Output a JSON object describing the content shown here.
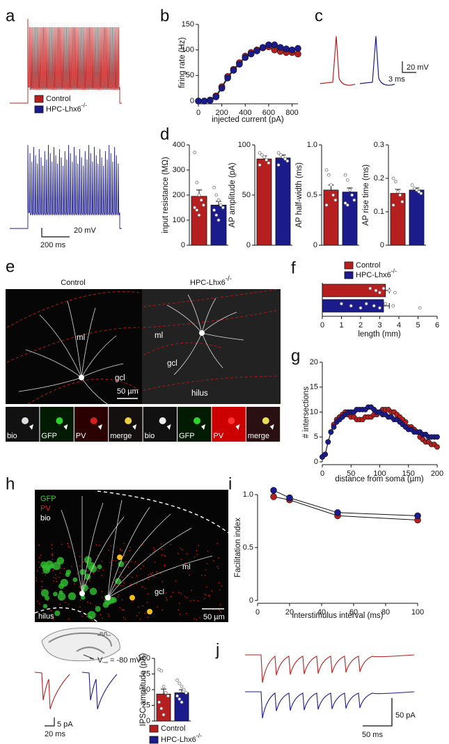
{
  "panels": [
    "a",
    "b",
    "c",
    "d",
    "e",
    "f",
    "g",
    "h",
    "i",
    "j"
  ],
  "groups": [
    {
      "name": "Control",
      "color": "#b51f1f"
    },
    {
      "name": "HPC-Lhx6",
      "sup": "-/-",
      "color": "#1b1b8c"
    }
  ],
  "scale_bars": {
    "a": [
      "20 mV",
      "200 ms"
    ],
    "c": [
      "20 mV",
      "3 ms"
    ],
    "h": [
      "5 pA",
      "20 ms"
    ],
    "j": [
      "50 pA",
      "50 ms"
    ]
  },
  "images": {
    "e": {
      "labels": [
        "ml",
        "gcl",
        "ml",
        "gcl",
        "hilus"
      ],
      "scale": "50 µm",
      "insets": [
        "bio",
        "GFP",
        "PV",
        "merge",
        "bio",
        "GFP",
        "PV",
        "merge"
      ]
    },
    "h": {
      "stains": [
        "GFP",
        "PV",
        "bio"
      ],
      "labels": [
        "ml",
        "gcl",
        "hilus"
      ],
      "scale": "50 µm",
      "vhold": [
        "V",
        "hold",
        " = -80 mV"
      ]
    }
  },
  "chart_data": [
    {
      "type": "line",
      "xlabel": "injected current (pA)",
      "ylabel": "firing rate (Hz)",
      "x": [
        0,
        50,
        100,
        150,
        200,
        250,
        300,
        350,
        400,
        450,
        500,
        550,
        600,
        650,
        700,
        750,
        800,
        850
      ],
      "xlim": [
        0,
        850
      ],
      "xticks": [
        0,
        200,
        400,
        600,
        800
      ],
      "ylim": [
        0,
        150
      ],
      "yticks": [
        0,
        50,
        100,
        150
      ],
      "series": [
        {
          "color": "#b51f1f",
          "values": [
            0,
            0,
            2,
            10,
            28,
            48,
            62,
            75,
            88,
            95,
            100,
            104,
            106,
            100,
            97,
            95,
            95,
            92
          ]
        },
        {
          "color": "#1b1b8c",
          "values": [
            0,
            0,
            1,
            8,
            25,
            45,
            60,
            72,
            85,
            92,
            98,
            105,
            110,
            110,
            105,
            102,
            100,
            103
          ]
        }
      ]
    },
    {
      "type": "bar",
      "ylabel": "input resistance (MΩ)",
      "ylim": [
        0,
        400
      ],
      "yticks": [
        0,
        100,
        200,
        300,
        400
      ],
      "values": [
        195,
        160
      ],
      "errors": [
        25,
        15
      ],
      "points": [
        [
          370,
          250,
          200,
          180,
          160,
          150,
          140,
          120
        ],
        [
          230,
          200,
          180,
          160,
          150,
          140,
          120,
          100
        ]
      ]
    },
    {
      "type": "bar",
      "ylabel": "AP amplitude (pA)",
      "ylim": [
        0,
        100
      ],
      "yticks": [
        0,
        50,
        100
      ],
      "values": [
        86,
        87
      ],
      "errors": [
        3,
        3
      ],
      "points": [
        [
          92,
          90,
          88,
          85,
          82,
          80
        ],
        [
          92,
          90,
          88,
          86,
          84,
          80
        ]
      ]
    },
    {
      "type": "bar",
      "ylabel": "AP half-width (ms)",
      "ylim": [
        0,
        1
      ],
      "yticks": [
        0,
        0.5,
        {
          "value": 1,
          "label": "1.0"
        }
      ],
      "values": [
        0.55,
        0.53
      ],
      "errors": [
        0.05,
        0.04
      ],
      "points": [
        [
          0.75,
          0.7,
          0.6,
          0.5,
          0.45,
          0.4
        ],
        [
          0.7,
          0.65,
          0.55,
          0.5,
          0.45,
          0.42,
          0.4
        ]
      ]
    },
    {
      "type": "bar",
      "ylabel": "AP rise time (ms)",
      "ylim": [
        0,
        0.3
      ],
      "yticks": [
        0,
        0.1,
        0.2,
        0.3
      ],
      "values": [
        0.155,
        0.165
      ],
      "errors": [
        0.012,
        0.006
      ],
      "points": [
        [
          0.2,
          0.19,
          0.16,
          0.15,
          0.13,
          0.12
        ],
        [
          0.18,
          0.17,
          0.165,
          0.16,
          0.155
        ]
      ]
    },
    {
      "type": "hbar",
      "xlabel": "length (mm)",
      "xlim": [
        0,
        6
      ],
      "xticks": [
        0,
        1,
        2,
        3,
        4,
        5,
        6
      ],
      "values": [
        3.3,
        3.2
      ],
      "errors": [
        0.2,
        0.3
      ],
      "points": [
        [
          2.5,
          2.8,
          3,
          3.2,
          3.5,
          3.8
        ],
        [
          1,
          1.5,
          2,
          2.3,
          2.7,
          3,
          3.3,
          3.7,
          5.1
        ]
      ]
    },
    {
      "type": "line",
      "xlabel": "distance from soma (µm)",
      "ylabel": "# intersections",
      "x": [
        0,
        5,
        10,
        15,
        20,
        25,
        30,
        35,
        40,
        45,
        50,
        55,
        60,
        65,
        70,
        75,
        80,
        85,
        90,
        95,
        100,
        105,
        110,
        115,
        120,
        125,
        130,
        135,
        140,
        145,
        150,
        155,
        160,
        165,
        170,
        175,
        180,
        185,
        190,
        195,
        200
      ],
      "xlim": [
        0,
        200
      ],
      "xticks": [
        0,
        50,
        100,
        150,
        200
      ],
      "ylim": [
        0,
        20
      ],
      "yticks": [
        0,
        5,
        10,
        15,
        20
      ],
      "series": [
        {
          "color": "#b51f1f",
          "values": [
            1,
            1.5,
            4,
            6,
            7.5,
            8.5,
            9,
            9.5,
            10,
            9.5,
            9,
            9,
            8.5,
            8.5,
            8.5,
            9,
            9,
            9,
            9.5,
            9.5,
            10,
            10.5,
            10.5,
            10.5,
            10,
            10,
            9.5,
            9,
            8.5,
            8,
            7,
            7,
            6.5,
            6,
            5,
            4.5,
            4,
            4,
            3.5,
            3.5,
            3
          ]
        },
        {
          "color": "#1b1b8c",
          "values": [
            1,
            1.5,
            4,
            6,
            7,
            8,
            8.5,
            9,
            9.5,
            10,
            10,
            10,
            10.5,
            10.5,
            10.5,
            10.5,
            11,
            11,
            10.5,
            10,
            10,
            9.5,
            9.5,
            9,
            9,
            8.5,
            8.5,
            8,
            7.5,
            7,
            6.5,
            6.5,
            6,
            6,
            6,
            5.5,
            5.5,
            5,
            5,
            5,
            5
          ]
        }
      ]
    },
    {
      "type": "line",
      "xlabel": "interstimulus interval (ms)",
      "ylabel": "Facilitation index",
      "x": [
        10,
        20,
        50,
        100
      ],
      "xlim": [
        0,
        100
      ],
      "xticks": [
        0,
        20,
        40,
        60,
        80,
        100
      ],
      "ylim": [
        0,
        1
      ],
      "yticks": [
        0,
        0.5,
        {
          "value": 1,
          "label": "1.0"
        }
      ],
      "series": [
        {
          "color": "#b51f1f",
          "values": [
            0.98,
            0.95,
            0.8,
            0.76
          ]
        },
        {
          "color": "#1b1b8c",
          "values": [
            1.04,
            0.97,
            0.83,
            0.8
          ]
        }
      ]
    },
    {
      "type": "bar",
      "ylabel": "IPSC amplitude (pA)",
      "ylim": [
        0,
        100
      ],
      "yticks": [
        0,
        25,
        50,
        75,
        100
      ],
      "values": [
        43,
        45
      ],
      "errors": [
        8,
        5
      ],
      "points": [
        [
          82,
          80,
          55,
          45,
          40,
          30,
          20,
          10
        ],
        [
          65,
          60,
          55,
          50,
          45,
          40,
          35,
          30
        ]
      ]
    }
  ]
}
